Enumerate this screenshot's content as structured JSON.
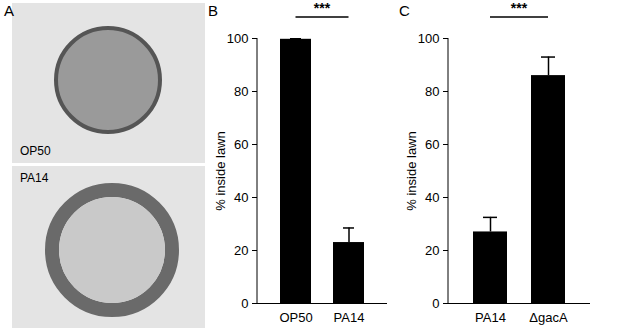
{
  "chart_data": [
    {
      "type": "image",
      "panel": "A",
      "labels": [
        "OP50",
        "PA14"
      ]
    },
    {
      "type": "bar",
      "panel": "B",
      "categories": [
        "OP50",
        "PA14"
      ],
      "values": [
        99.7,
        23
      ],
      "errors": [
        0.3,
        5.5
      ],
      "color": "#000000",
      "y_label": "% inside lawn",
      "ylim": [
        0,
        100
      ],
      "yticks": [
        0,
        20,
        40,
        60,
        80,
        100
      ],
      "annotations": [
        "***"
      ]
    },
    {
      "type": "bar",
      "panel": "C",
      "categories": [
        "PA14",
        "ΔgacA"
      ],
      "values": [
        27,
        86
      ],
      "errors": [
        5.5,
        7
      ],
      "color": "#000000",
      "y_label": "% inside lawn",
      "ylim": [
        0,
        100
      ],
      "yticks": [
        0,
        20,
        40,
        60,
        80,
        100
      ],
      "annotations": [
        "***"
      ]
    }
  ]
}
